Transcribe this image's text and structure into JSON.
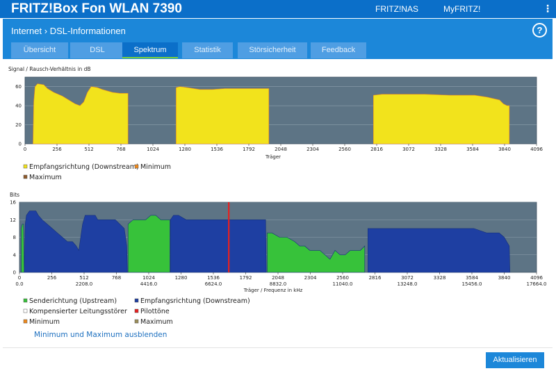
{
  "header": {
    "brand": "FRITZ!Box Fon WLAN 7390",
    "nav_links": [
      "FRITZ!NAS",
      "MyFRITZ!"
    ],
    "menu_glyph": "⋮"
  },
  "breadcrumb": {
    "section": "Internet",
    "separator": "›",
    "page": "DSL-Informationen"
  },
  "help_glyph": "?",
  "tabs": [
    {
      "label": "Übersicht",
      "active": false
    },
    {
      "label": "DSL",
      "active": false
    },
    {
      "label": "Spektrum",
      "active": true
    },
    {
      "label": "Statistik",
      "active": false
    },
    {
      "label": "Störsicherheit",
      "active": false
    },
    {
      "label": "Feedback",
      "active": false
    }
  ],
  "colors": {
    "accent": "#1c87d9",
    "chart_bg": "#5d7485",
    "yellow": "#f2e31c",
    "blue": "#1e3fa2",
    "green": "#37c23a",
    "red": "#e62020",
    "orange": "#f08a1c",
    "brown": "#8f5a2a",
    "olive": "#9c8f5a"
  },
  "chart_data": [
    {
      "type": "area",
      "title": "Signal / Rausch-Verhältnis in dB",
      "xlabel": "Träger",
      "xlim": [
        0,
        4096
      ],
      "ylim": [
        0,
        70
      ],
      "yticks": [
        0,
        20,
        40,
        60
      ],
      "xticks": [
        0,
        256,
        512,
        768,
        1024,
        1280,
        1536,
        1792,
        2048,
        2304,
        2560,
        2816,
        3072,
        3328,
        3584,
        3840,
        4096
      ],
      "series": [
        {
          "name": "Empfangsrichtung (Downstream)",
          "color": "yellow",
          "segments": [
            [
              [
                64,
                0
              ],
              [
                70,
                44
              ],
              [
                80,
                60
              ],
              [
                100,
                63
              ],
              [
                150,
                62
              ],
              [
                180,
                58
              ],
              [
                230,
                54
              ],
              [
                300,
                50
              ],
              [
                350,
                46
              ],
              [
                400,
                42
              ],
              [
                440,
                40
              ],
              [
                470,
                44
              ],
              [
                500,
                54
              ],
              [
                530,
                60
              ],
              [
                580,
                59
              ],
              [
                620,
                57
              ],
              [
                700,
                54
              ],
              [
                760,
                53
              ],
              [
                825,
                53
              ],
              [
                825,
                0
              ]
            ],
            [
              [
                1210,
                0
              ],
              [
                1210,
                59
              ],
              [
                1240,
                60
              ],
              [
                1300,
                59
              ],
              [
                1400,
                57
              ],
              [
                1500,
                57
              ],
              [
                1600,
                58
              ],
              [
                1800,
                58
              ],
              [
                1952,
                58
              ],
              [
                1952,
                0
              ]
            ],
            [
              [
                2790,
                0
              ],
              [
                2790,
                51
              ],
              [
                2860,
                52
              ],
              [
                3000,
                52
              ],
              [
                3200,
                52
              ],
              [
                3400,
                51
              ],
              [
                3600,
                51
              ],
              [
                3700,
                49
              ],
              [
                3800,
                46
              ],
              [
                3830,
                42
              ],
              [
                3860,
                40
              ],
              [
                3878,
                40
              ],
              [
                3878,
                0
              ]
            ]
          ]
        }
      ],
      "legend": [
        {
          "label": "Empfangsrichtung (Downstream)",
          "color": "yellow"
        },
        {
          "label": "Minimum",
          "color": "orange"
        },
        {
          "label": "Maximum",
          "color": "brown"
        }
      ]
    },
    {
      "type": "area",
      "title": "Bits",
      "xlabel": "Träger / Frequenz in kHz",
      "xlim": [
        0,
        4096
      ],
      "ylim": [
        0,
        16
      ],
      "yticks": [
        0,
        4,
        8,
        12,
        16
      ],
      "xticks": [
        0,
        256,
        512,
        768,
        1024,
        1280,
        1536,
        1792,
        2048,
        2304,
        2560,
        2816,
        3072,
        3328,
        3584,
        3840,
        4096
      ],
      "freq_ticks": [
        {
          "carrier": 0,
          "label": "0.0"
        },
        {
          "carrier": 512,
          "label": "2208.0"
        },
        {
          "carrier": 1024,
          "label": "4416.0"
        },
        {
          "carrier": 1536,
          "label": "6624.0"
        },
        {
          "carrier": 2048,
          "label": "8832.0"
        },
        {
          "carrier": 2560,
          "label": "11040.0"
        },
        {
          "carrier": 3072,
          "label": "13248.0"
        },
        {
          "carrier": 3584,
          "label": "15456.0"
        },
        {
          "carrier": 4096,
          "label": "17664.0"
        }
      ],
      "series": [
        {
          "name": "Senderichtung (Upstream)",
          "color": "green",
          "segments": [
            [
              [
                14,
                0
              ],
              [
                14,
                10
              ],
              [
                22,
                11
              ],
              [
                32,
                11
              ],
              [
                38,
                0
              ]
            ],
            [
              [
                860,
                0
              ],
              [
                860,
                11
              ],
              [
                900,
                12
              ],
              [
                960,
                12
              ],
              [
                1000,
                12
              ],
              [
                1040,
                13
              ],
              [
                1080,
                13
              ],
              [
                1120,
                12
              ],
              [
                1160,
                12
              ],
              [
                1192,
                12
              ],
              [
                1192,
                0
              ]
            ],
            [
              [
                1962,
                0
              ],
              [
                1962,
                9
              ],
              [
                2000,
                9
              ],
              [
                2060,
                8
              ],
              [
                2120,
                8
              ],
              [
                2180,
                7
              ],
              [
                2220,
                6
              ],
              [
                2260,
                6
              ],
              [
                2300,
                5
              ],
              [
                2340,
                5
              ],
              [
                2380,
                5
              ],
              [
                2420,
                4
              ],
              [
                2460,
                3
              ],
              [
                2500,
                5
              ],
              [
                2540,
                4
              ],
              [
                2580,
                4
              ],
              [
                2620,
                5
              ],
              [
                2660,
                5
              ],
              [
                2700,
                5
              ],
              [
                2735,
                6
              ],
              [
                2735,
                0
              ]
            ]
          ]
        },
        {
          "name": "Empfangsrichtung (Downstream)",
          "color": "blue",
          "segments": [
            [
              [
                38,
                0
              ],
              [
                45,
                11
              ],
              [
                55,
                13
              ],
              [
                80,
                14
              ],
              [
                130,
                14
              ],
              [
                150,
                13
              ],
              [
                180,
                12
              ],
              [
                220,
                11
              ],
              [
                260,
                10
              ],
              [
                300,
                9
              ],
              [
                340,
                8
              ],
              [
                380,
                7
              ],
              [
                420,
                7
              ],
              [
                450,
                6
              ],
              [
                470,
                5
              ],
              [
                480,
                7
              ],
              [
                500,
                11
              ],
              [
                520,
                13
              ],
              [
                560,
                13
              ],
              [
                600,
                13
              ],
              [
                620,
                12
              ],
              [
                680,
                12
              ],
              [
                760,
                12
              ],
              [
                830,
                10
              ],
              [
                850,
                6
              ],
              [
                855,
                0
              ]
            ],
            [
              [
                1196,
                0
              ],
              [
                1196,
                12
              ],
              [
                1220,
                13
              ],
              [
                1260,
                13
              ],
              [
                1320,
                12
              ],
              [
                1500,
                12
              ],
              [
                1700,
                12
              ],
              [
                1850,
                12
              ],
              [
                1950,
                12
              ],
              [
                1955,
                0
              ]
            ],
            [
              [
                2760,
                0
              ],
              [
                2760,
                10
              ],
              [
                2800,
                10
              ],
              [
                3000,
                10
              ],
              [
                3200,
                10
              ],
              [
                3400,
                10
              ],
              [
                3600,
                10
              ],
              [
                3700,
                9
              ],
              [
                3800,
                9
              ],
              [
                3840,
                8
              ],
              [
                3860,
                7
              ],
              [
                3880,
                6
              ],
              [
                3885,
                0
              ]
            ]
          ]
        }
      ],
      "pilot_tone_carrier": 1658,
      "legend": [
        {
          "label": "Senderichtung (Upstream)",
          "color": "green"
        },
        {
          "label": "Empfangsrichtung (Downstream)",
          "color": "blue"
        },
        {
          "label": "Kompensierter Leitungsstörer",
          "color": "white"
        },
        {
          "label": "Pilottöne",
          "color": "red"
        },
        {
          "label": "Minimum",
          "color": "orange"
        },
        {
          "label": "Maximum",
          "color": "olive"
        }
      ]
    }
  ],
  "toggle_link": "Minimum und Maximum ausblenden",
  "refresh_button": "Aktualisieren"
}
